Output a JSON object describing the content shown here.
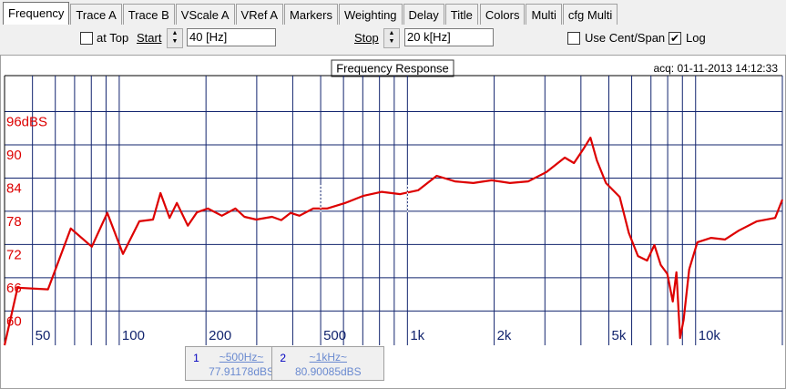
{
  "tabs": [
    "Frequency",
    "Trace A",
    "Trace B",
    "VScale A",
    "VRef A",
    "Markers",
    "Weighting",
    "Delay",
    "Title",
    "Colors",
    "Multi",
    "cfg Multi"
  ],
  "active_tab": 0,
  "controls": {
    "at_top": {
      "label": "at Top",
      "checked": false
    },
    "start": {
      "label": "Start",
      "value": "40 [Hz]"
    },
    "stop": {
      "label": "Stop",
      "value": "20 k[Hz]"
    },
    "use_cent_span": {
      "label": "Use Cent/Span",
      "checked": false
    },
    "log": {
      "label": "Log",
      "checked": true
    }
  },
  "chart_data": {
    "type": "line",
    "title": "Frequency Response",
    "annotation": "acq: 01-11-2013 14:12:33",
    "x": [
      40,
      44.4,
      56.6,
      67.9,
      80.3,
      90.9,
      103,
      117.4,
      131,
      139,
      149.5,
      158.5,
      173,
      186,
      203,
      227,
      253,
      272,
      299,
      339,
      365,
      393,
      422,
      471,
      526,
      608,
      704,
      815,
      944,
      1091,
      1264,
      1462,
      1693,
      1960,
      2268,
      2624,
      3039,
      3516,
      3784,
      4074,
      4316,
      4541,
      4886,
      5453,
      5866,
      6310,
      6790,
      7194,
      7568,
      7980,
      8336,
      8578,
      8830,
      9090,
      9500,
      10140,
      11320,
      12640,
      14100,
      16330,
      18880,
      20000
    ],
    "series": [
      {
        "color": "#dd0000",
        "values": [
          53.8,
          64.2,
          63.9,
          74.9,
          71.6,
          77.7,
          70.3,
          76.2,
          76.5,
          81.3,
          76.8,
          79.5,
          75.4,
          77.8,
          78.5,
          77.2,
          78.5,
          77.0,
          76.5,
          77.0,
          76.4,
          77.7,
          77.2,
          78.5,
          78.5,
          79.5,
          80.8,
          81.5,
          81.1,
          81.8,
          84.4,
          83.4,
          83.1,
          83.6,
          83.1,
          83.4,
          85.1,
          87.7,
          86.7,
          89.2,
          91.3,
          87.2,
          83.1,
          80.6,
          74.1,
          69.9,
          69.1,
          71.9,
          68.3,
          66.7,
          61.7,
          67.0,
          55.1,
          58.4,
          67.5,
          72.4,
          73.2,
          72.9,
          74.5,
          76.2,
          76.8,
          80.1
        ]
      }
    ],
    "xlim": [
      40,
      20000
    ],
    "ylim": [
      53.8,
      102.5
    ],
    "log_x": true,
    "grid": true,
    "grid_color": "#12246e",
    "xticks": [
      50,
      100,
      200,
      500,
      {
        "value": 1000,
        "label": "1k"
      },
      {
        "value": 2000,
        "label": "2k"
      },
      {
        "value": 5000,
        "label": "5k"
      },
      {
        "value": 10000,
        "label": "10k"
      }
    ],
    "xgrid_minor": [
      60,
      70,
      80,
      90,
      300,
      400,
      600,
      700,
      800,
      900,
      3000,
      4000,
      6000,
      7000,
      8000,
      9000,
      20000
    ],
    "yticks": [
      60,
      66,
      72,
      78,
      84,
      90,
      {
        "value": 96,
        "label": "96dBS"
      }
    ]
  },
  "markers": [
    {
      "number": "1",
      "frequency": "~500Hz~",
      "reading": "77.91178dBS",
      "x": 500
    },
    {
      "number": "2",
      "frequency": "~1kHz~",
      "reading": "80.90085dBS",
      "x": 1000
    }
  ]
}
